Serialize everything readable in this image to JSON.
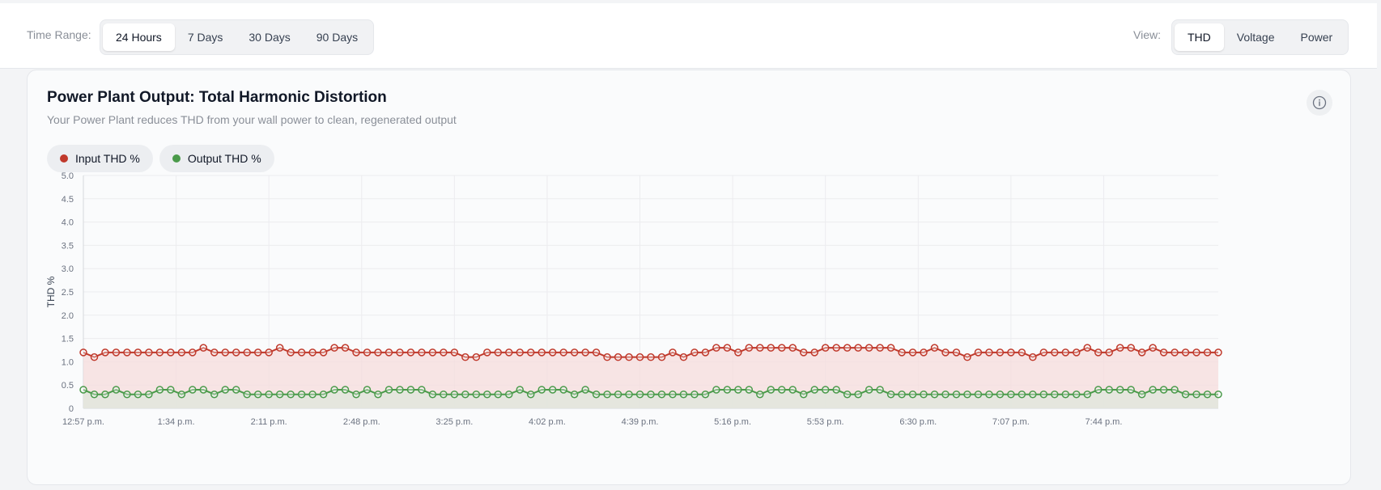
{
  "time_range": {
    "label": "Time Range:",
    "options": [
      "24 Hours",
      "7 Days",
      "30 Days",
      "90 Days"
    ],
    "selected": "24 Hours"
  },
  "view": {
    "label": "View:",
    "options": [
      "THD",
      "Voltage",
      "Power"
    ],
    "selected": "THD"
  },
  "card": {
    "title": "Power Plant Output: Total Harmonic Distortion",
    "subtitle": "Your Power Plant reduces THD from your wall power to clean, regenerated output"
  },
  "legend": [
    {
      "label": "Input THD %",
      "color": "#c0392b"
    },
    {
      "label": "Output THD %",
      "color": "#4a9a4a"
    }
  ],
  "chart_data": {
    "type": "line",
    "ylabel": "THD %",
    "ylim": [
      0,
      5.0
    ],
    "yticks": [
      "0",
      "0.5",
      "1.0",
      "1.5",
      "2.0",
      "2.5",
      "3.0",
      "3.5",
      "4.0",
      "4.5",
      "5.0"
    ],
    "xtick_labels": [
      "12:57 p.m.",
      "1:34 p.m.",
      "2:11 p.m.",
      "2:48 p.m.",
      "3:25 p.m.",
      "4:02 p.m.",
      "4:39 p.m.",
      "5:16 p.m.",
      "5:53 p.m.",
      "6:30 p.m.",
      "7:07 p.m.",
      "7:44 p.m."
    ],
    "points_per_tick": 8.5,
    "grid": true,
    "fill_area": true,
    "series": [
      {
        "name": "Input THD %",
        "color": "#c0392b",
        "fill": "#f6dcdc",
        "values": [
          1.2,
          1.1,
          1.2,
          1.2,
          1.2,
          1.2,
          1.2,
          1.2,
          1.2,
          1.2,
          1.2,
          1.3,
          1.2,
          1.2,
          1.2,
          1.2,
          1.2,
          1.2,
          1.3,
          1.2,
          1.2,
          1.2,
          1.2,
          1.3,
          1.3,
          1.2,
          1.2,
          1.2,
          1.2,
          1.2,
          1.2,
          1.2,
          1.2,
          1.2,
          1.2,
          1.1,
          1.1,
          1.2,
          1.2,
          1.2,
          1.2,
          1.2,
          1.2,
          1.2,
          1.2,
          1.2,
          1.2,
          1.2,
          1.1,
          1.1,
          1.1,
          1.1,
          1.1,
          1.1,
          1.2,
          1.1,
          1.2,
          1.2,
          1.3,
          1.3,
          1.2,
          1.3,
          1.3,
          1.3,
          1.3,
          1.3,
          1.2,
          1.2,
          1.3,
          1.3,
          1.3,
          1.3,
          1.3,
          1.3,
          1.3,
          1.2,
          1.2,
          1.2,
          1.3,
          1.2,
          1.2,
          1.1,
          1.2,
          1.2,
          1.2,
          1.2,
          1.2,
          1.1,
          1.2,
          1.2,
          1.2,
          1.2,
          1.3,
          1.2,
          1.2,
          1.3,
          1.3,
          1.2,
          1.3,
          1.2,
          1.2,
          1.2,
          1.2,
          1.2,
          1.2
        ]
      },
      {
        "name": "Output THD %",
        "color": "#4a9a4a",
        "fill": "#dfe7dc",
        "values": [
          0.4,
          0.3,
          0.3,
          0.4,
          0.3,
          0.3,
          0.3,
          0.4,
          0.4,
          0.3,
          0.4,
          0.4,
          0.3,
          0.4,
          0.4,
          0.3,
          0.3,
          0.3,
          0.3,
          0.3,
          0.3,
          0.3,
          0.3,
          0.4,
          0.4,
          0.3,
          0.4,
          0.3,
          0.4,
          0.4,
          0.4,
          0.4,
          0.3,
          0.3,
          0.3,
          0.3,
          0.3,
          0.3,
          0.3,
          0.3,
          0.4,
          0.3,
          0.4,
          0.4,
          0.4,
          0.3,
          0.4,
          0.3,
          0.3,
          0.3,
          0.3,
          0.3,
          0.3,
          0.3,
          0.3,
          0.3,
          0.3,
          0.3,
          0.4,
          0.4,
          0.4,
          0.4,
          0.3,
          0.4,
          0.4,
          0.4,
          0.3,
          0.4,
          0.4,
          0.4,
          0.3,
          0.3,
          0.4,
          0.4,
          0.3,
          0.3,
          0.3,
          0.3,
          0.3,
          0.3,
          0.3,
          0.3,
          0.3,
          0.3,
          0.3,
          0.3,
          0.3,
          0.3,
          0.3,
          0.3,
          0.3,
          0.3,
          0.3,
          0.4,
          0.4,
          0.4,
          0.4,
          0.3,
          0.4,
          0.4,
          0.4,
          0.3,
          0.3,
          0.3,
          0.3
        ]
      }
    ]
  }
}
